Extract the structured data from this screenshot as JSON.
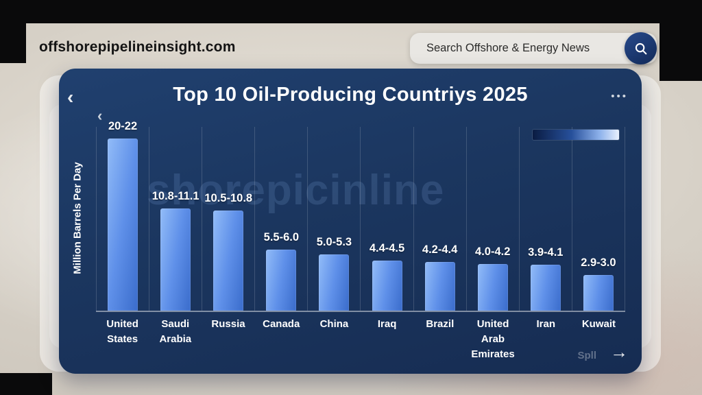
{
  "page": {
    "site_name": "offshorepipelineinsight.com",
    "search": {
      "placeholder": "Search Offshore & Energy News"
    },
    "card": {
      "chevron": "‹",
      "ellipsis": "•••",
      "watermark": "shorepicinline",
      "footer_hint": "Spll",
      "arrow": "→"
    },
    "colors": {
      "card_background": "#1b365f",
      "bar_gradient_start": "#92bcf8",
      "bar_gradient_end": "#3a6ccb",
      "search_button": "#122a58",
      "top_bar": "#0a0a0b"
    }
  },
  "chart_data": {
    "type": "bar",
    "title": "Top 10 Oil-Producing Countriys 2025",
    "xlabel": "",
    "ylabel": "Million Barrels Per Day",
    "categories": [
      "United States",
      "Saudi Arabia",
      "Russia",
      "Canada",
      "China",
      "Iraq",
      "Brazil",
      "United Arab Emirates",
      "Iran",
      "Kuwait"
    ],
    "value_labels": [
      "20-22",
      "10.8-11.1",
      "10.5-10.8",
      "5.5-6.0",
      "5.0-5.3",
      "4.4-4.5",
      "4.2-4.4",
      "4.0-4.2",
      "3.9-4.1",
      "2.9-3.0"
    ],
    "values": [
      21,
      10.95,
      10.65,
      5.75,
      5.15,
      4.45,
      4.3,
      4.1,
      4.0,
      2.95
    ],
    "ylim": [
      0,
      23
    ],
    "grid": "vertical",
    "legend": {
      "type": "gradient-bar",
      "colors": [
        "#0a1c42",
        "#e9f1fd"
      ],
      "position": "top-right"
    }
  }
}
